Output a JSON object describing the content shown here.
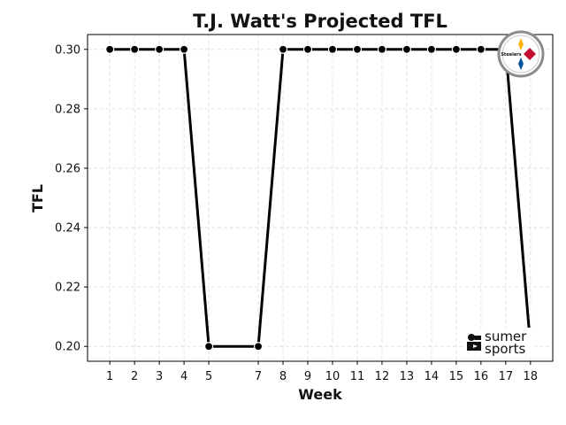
{
  "chart_data": {
    "type": "line",
    "title": "T.J. Watt's Projected TFL",
    "xlabel": "Week",
    "ylabel": "TFL",
    "x": [
      1,
      2,
      3,
      4,
      5,
      7,
      8,
      9,
      10,
      11,
      12,
      13,
      14,
      15,
      16,
      17,
      18
    ],
    "y": [
      0.3,
      0.3,
      0.3,
      0.3,
      0.2,
      0.2,
      0.3,
      0.3,
      0.3,
      0.3,
      0.3,
      0.3,
      0.3,
      0.3,
      0.3,
      0.3,
      0.2
    ],
    "xlim": [
      0.1,
      18.9
    ],
    "ylim": [
      0.195,
      0.305
    ],
    "yticks": [
      "0.20",
      "0.22",
      "0.24",
      "0.26",
      "0.28",
      "0.30"
    ],
    "grid": true,
    "line_color": "#000000"
  },
  "logos": {
    "team_icon": "steelers-logo-icon",
    "team_text": "Steelers",
    "brand_text_top": "sumer",
    "brand_text_bottom": "sports"
  }
}
